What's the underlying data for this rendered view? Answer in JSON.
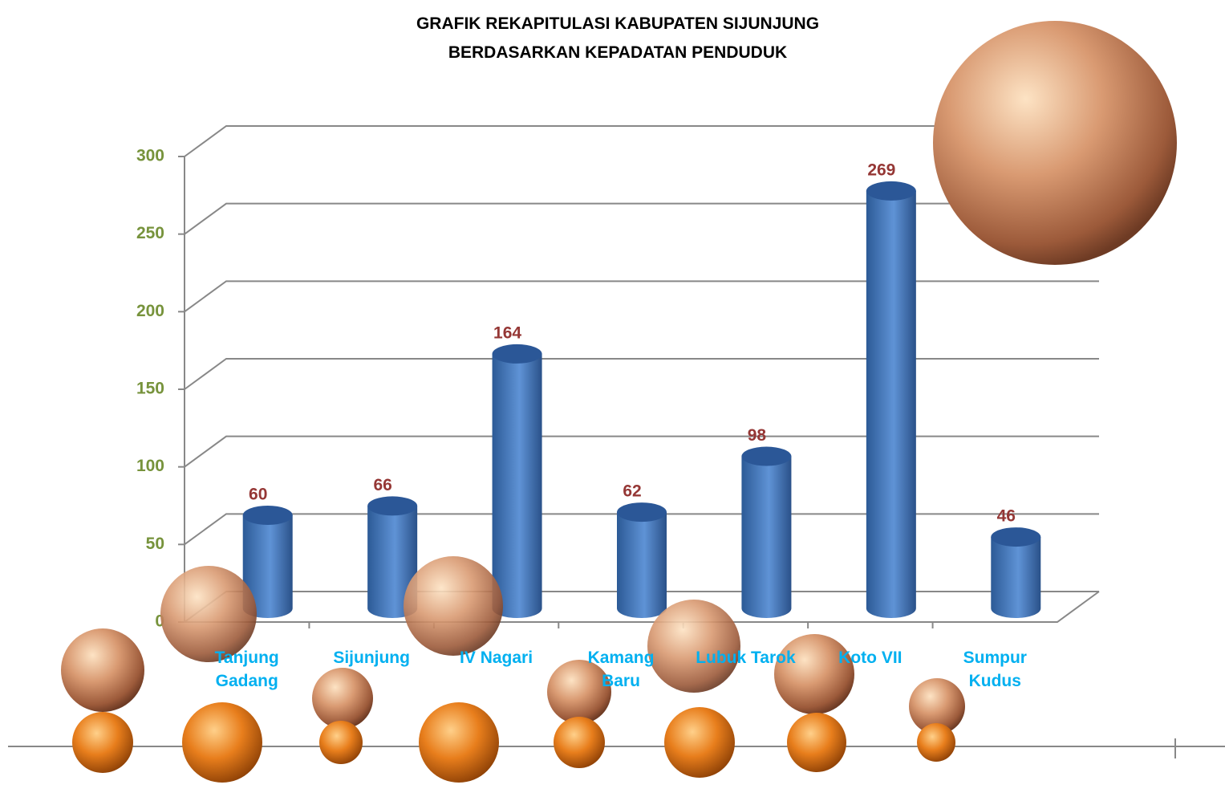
{
  "chart_data": {
    "type": "bar",
    "title": "GRAFIK REKAPITULASI KABUPATEN SIJUNJUNG",
    "subtitle": "BERDASARKAN KEPADATAN PENDUDUK",
    "categories": [
      "Tanjung Gadang",
      "Sijunjung",
      "IV Nagari",
      "Kamang Baru",
      "Lubuk Tarok",
      "Koto VII",
      "Sumpur Kudus"
    ],
    "values": [
      60,
      66,
      164,
      62,
      98,
      269,
      46
    ],
    "color": "#4f81bd",
    "ylim": [
      0,
      300
    ],
    "yticks": [
      0,
      50,
      100,
      150,
      200,
      250,
      300
    ],
    "grid": true
  }
}
